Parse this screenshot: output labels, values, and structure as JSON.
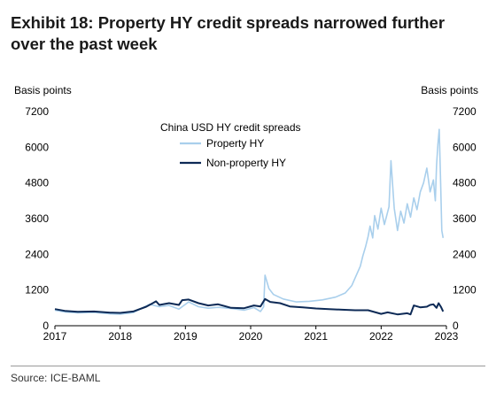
{
  "title": "Exhibit 18: Property HY credit spreads narrowed further over the past week",
  "source": "Source: ICE-BAML",
  "chart_data": {
    "type": "line",
    "title": "China USD HY credit spreads",
    "ylabel_left": "Basis points",
    "ylabel_right": "Basis points",
    "xlim": [
      2017.0,
      2023.0
    ],
    "ylim": [
      0,
      7200
    ],
    "yticks": [
      "0",
      "1200",
      "2400",
      "3600",
      "4800",
      "6000",
      "7200"
    ],
    "xticks": [
      "2017",
      "2018",
      "2019",
      "2020",
      "2021",
      "2022",
      "2023"
    ],
    "legend_position": "top-center",
    "series": [
      {
        "name": "Property HY",
        "color": "#a9cfec",
        "x": [
          2017.0,
          2017.15,
          2017.35,
          2017.6,
          2017.85,
          2018.0,
          2018.2,
          2018.45,
          2018.6,
          2018.75,
          2018.9,
          2019.05,
          2019.2,
          2019.35,
          2019.5,
          2019.7,
          2019.9,
          2020.05,
          2020.15,
          2020.2,
          2020.22,
          2020.28,
          2020.35,
          2020.5,
          2020.7,
          2020.9,
          2021.1,
          2021.3,
          2021.45,
          2021.55,
          2021.62,
          2021.68,
          2021.72,
          2021.76,
          2021.8,
          2021.83,
          2021.87,
          2021.9,
          2021.95,
          2022.0,
          2022.05,
          2022.12,
          2022.15,
          2022.2,
          2022.25,
          2022.3,
          2022.35,
          2022.4,
          2022.45,
          2022.5,
          2022.55,
          2022.6,
          2022.65,
          2022.7,
          2022.75,
          2022.8,
          2022.83,
          2022.85,
          2022.87,
          2022.89,
          2022.91,
          2022.93,
          2022.95
        ],
        "values": [
          520,
          460,
          430,
          450,
          400,
          390,
          440,
          720,
          640,
          680,
          560,
          800,
          640,
          590,
          620,
          580,
          520,
          610,
          480,
          640,
          1700,
          1250,
          1050,
          900,
          800,
          820,
          870,
          960,
          1100,
          1350,
          1700,
          2000,
          2350,
          2650,
          3000,
          3350,
          2950,
          3700,
          3250,
          3950,
          3400,
          4000,
          5550,
          3950,
          3200,
          3850,
          3450,
          4100,
          3650,
          4300,
          3900,
          4500,
          4800,
          5300,
          4500,
          4900,
          4200,
          5400,
          6100,
          6600,
          4900,
          3200,
          2950
        ]
      },
      {
        "name": "Non-property HY",
        "color": "#0d2a56",
        "x": [
          2017.0,
          2017.15,
          2017.35,
          2017.6,
          2017.85,
          2018.0,
          2018.2,
          2018.4,
          2018.5,
          2018.55,
          2018.6,
          2018.75,
          2018.9,
          2018.95,
          2019.05,
          2019.2,
          2019.35,
          2019.5,
          2019.7,
          2019.9,
          2020.05,
          2020.15,
          2020.22,
          2020.3,
          2020.45,
          2020.6,
          2020.8,
          2021.0,
          2021.2,
          2021.4,
          2021.6,
          2021.8,
          2022.0,
          2022.1,
          2022.25,
          2022.4,
          2022.45,
          2022.5,
          2022.6,
          2022.7,
          2022.75,
          2022.8,
          2022.85,
          2022.88,
          2022.92,
          2022.95
        ],
        "values": [
          560,
          500,
          470,
          480,
          440,
          430,
          480,
          640,
          760,
          820,
          700,
          760,
          700,
          860,
          880,
          760,
          680,
          720,
          600,
          590,
          680,
          650,
          900,
          800,
          760,
          650,
          620,
          580,
          560,
          540,
          520,
          520,
          400,
          450,
          380,
          420,
          380,
          680,
          620,
          640,
          700,
          720,
          600,
          760,
          620,
          480
        ]
      }
    ]
  }
}
